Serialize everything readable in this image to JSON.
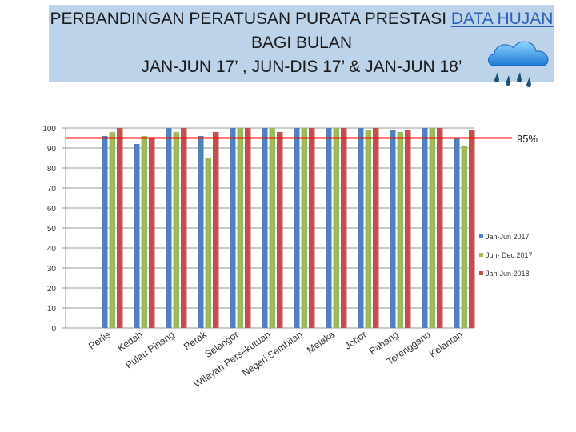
{
  "title": {
    "line1_prefix": "PERBANDINGAN PERATUSAN  PURATA PRESTASI ",
    "line1_link": "DATA HUJAN",
    "line2": "BAGI BULAN",
    "line3": "JAN-JUN 17’ , JUN-DIS 17’  & JAN-JUN 18’"
  },
  "annotation": "95%",
  "icon": "rain-cloud-icon",
  "chart_data": {
    "type": "bar",
    "categories": [
      "Perlis",
      "Kedah",
      "Pulau Pinang",
      "Perak",
      "Selangor",
      "Wilayah Persekutuan",
      "Negeri Sembilan",
      "Melaka",
      "Johor",
      "Pahang",
      "Terengganu",
      "Kelantan"
    ],
    "series": [
      {
        "name": "Jan-Jun 2017",
        "color": "#4f81bd",
        "values": [
          96,
          92,
          100,
          96,
          100,
          100,
          100,
          100,
          100,
          99,
          100,
          95
        ]
      },
      {
        "name": "Jun- Dec 2017",
        "color": "#9bbb59",
        "values": [
          98,
          96,
          98,
          85,
          100,
          100,
          100,
          100,
          99,
          98,
          100,
          91
        ]
      },
      {
        "name": "Jan-Jun 2018",
        "color": "#c0504d",
        "values": [
          100,
          95,
          100,
          98,
          100,
          98,
          100,
          100,
          100,
          99,
          100,
          99
        ]
      }
    ],
    "ylim": [
      0,
      100
    ],
    "yticks": [
      0,
      10,
      20,
      30,
      40,
      50,
      60,
      70,
      80,
      90,
      100
    ],
    "reference_line": {
      "value": 95,
      "color": "#ff0000",
      "label": "95%"
    },
    "legend_position": "right",
    "grid": true,
    "xlabel": "",
    "ylabel": ""
  }
}
